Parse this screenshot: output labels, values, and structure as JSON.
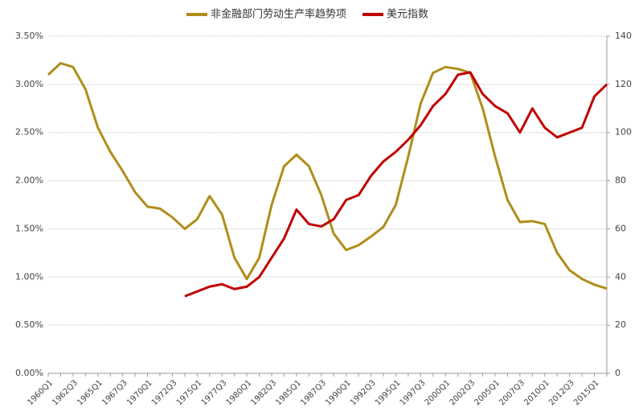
{
  "chart_data": {
    "type": "line",
    "categories": [
      "1960Q1",
      null,
      "1962Q3",
      null,
      "1965Q1",
      null,
      "1967Q3",
      null,
      "1970Q1",
      null,
      "1972Q3",
      null,
      "1975Q1",
      null,
      "1977Q3",
      null,
      "1980Q1",
      null,
      "1982Q3",
      null,
      "1985Q1",
      null,
      "1987Q3",
      null,
      "1990Q1",
      null,
      "1992Q3",
      null,
      "1995Q1",
      null,
      "1997Q3",
      null,
      "2000Q1",
      null,
      "2002Q3",
      null,
      "2005Q1",
      null,
      "2007Q3",
      null,
      "2010Q1",
      null,
      "2012Q3",
      null,
      "2015Q1",
      null
    ],
    "series": [
      {
        "name": "非金融部门劳动生产率趋势项",
        "color": "#b08d1a",
        "values": [
          3.1,
          3.22,
          3.18,
          2.95,
          2.55,
          2.3,
          2.1,
          1.88,
          1.73,
          1.71,
          1.62,
          1.5,
          1.6,
          1.84,
          1.65,
          1.2,
          0.98,
          1.2,
          1.75,
          2.15,
          2.27,
          2.15,
          1.85,
          1.45,
          1.28,
          1.33,
          1.42,
          1.52,
          1.75,
          2.25,
          2.8,
          3.12,
          3.18,
          3.16,
          3.12,
          2.75,
          2.25,
          1.8,
          1.57,
          1.58,
          1.55,
          1.25,
          1.07,
          0.98,
          0.92,
          0.88
        ]
      },
      {
        "name": "美元指数",
        "color": "#c00000",
        "axis": "y2",
        "values": [
          null,
          null,
          null,
          null,
          null,
          null,
          null,
          null,
          null,
          null,
          null,
          32,
          34,
          36,
          37,
          35,
          36,
          40,
          48,
          56,
          68,
          62,
          61,
          64,
          72,
          74,
          82,
          88,
          92,
          97,
          103,
          111,
          116,
          124,
          125,
          116,
          111,
          108,
          100,
          110,
          102,
          98,
          100,
          102,
          115,
          120
        ]
      }
    ],
    "ylim": [
      0,
      3.5
    ],
    "yticks": [
      {
        "value": 0,
        "label": "0.00%"
      },
      {
        "value": 0.5,
        "label": "0.50%"
      },
      {
        "value": 1,
        "label": "1.00%"
      },
      {
        "value": 1.5,
        "label": "1.50%"
      },
      {
        "value": 2,
        "label": "2.00%"
      },
      {
        "value": 2.5,
        "label": "2.50%"
      },
      {
        "value": 3,
        "label": "3.00%"
      },
      {
        "value": 3.5,
        "label": "3.50%"
      }
    ],
    "y2lim": [
      0,
      140
    ],
    "y2ticks": [
      0,
      20,
      40,
      60,
      80,
      100,
      120,
      140
    ],
    "grid": true
  }
}
